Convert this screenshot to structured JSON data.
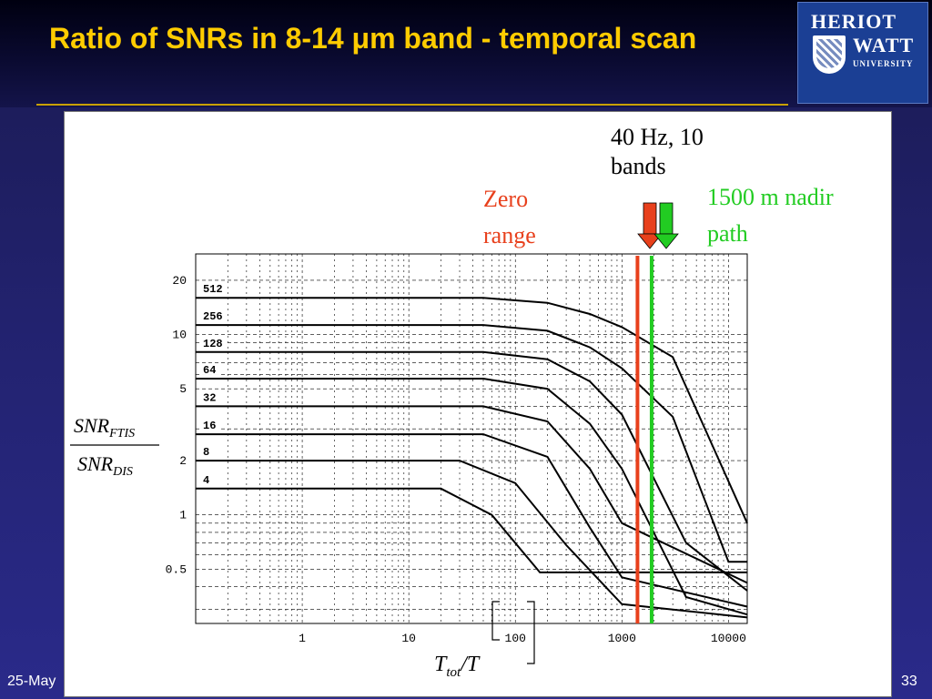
{
  "slide": {
    "title": "Ratio of SNRs in 8-14 μm band - temporal scan",
    "footer_date": "25-May",
    "page_number": "33"
  },
  "logo": {
    "line1": "HERIOT",
    "line2": "WATT",
    "line3": "UNIVERSITY"
  },
  "colors": {
    "title": "#ffcc00",
    "zero_range": "#e8401c",
    "nadir_path": "#22cc22",
    "curves": "#000000"
  },
  "chart_data": {
    "type": "line",
    "x_scale": "log",
    "y_scale": "log",
    "xlim": [
      0.1,
      15000
    ],
    "ylim": [
      0.25,
      28
    ],
    "grid": true,
    "grid_style": "dashed",
    "x_ticks": [
      1,
      10,
      100,
      1000,
      10000
    ],
    "x_tick_labels": [
      "1",
      "10",
      "100",
      "1000",
      "10000"
    ],
    "y_ticks": [
      0.5,
      1,
      2,
      5,
      10,
      20
    ],
    "y_tick_labels": [
      "0.5",
      "1",
      "2",
      "5",
      "10",
      "20"
    ],
    "ylabel_numerator_base": "SNR",
    "ylabel_numerator_sub": "FTIS",
    "ylabel_denominator_base": "SNR",
    "ylabel_denominator_sub": "DIS",
    "xlabel_base": "T",
    "xlabel_sub": "tot",
    "xlabel_rest": "/T",
    "series": [
      {
        "name": "512",
        "x": [
          0.1,
          50,
          200,
          500,
          1000,
          3000,
          15000
        ],
        "y": [
          16,
          16,
          15,
          13,
          11,
          7.5,
          0.9
        ]
      },
      {
        "name": "256",
        "x": [
          0.1,
          50,
          200,
          500,
          1000,
          3000,
          10000,
          15000
        ],
        "y": [
          11.3,
          11.3,
          10.5,
          8.5,
          6.5,
          3.5,
          0.55,
          0.55
        ]
      },
      {
        "name": "128",
        "x": [
          0.1,
          50,
          200,
          500,
          1000,
          4000,
          15000
        ],
        "y": [
          8,
          8,
          7.3,
          5.5,
          3.6,
          0.7,
          0.38
        ]
      },
      {
        "name": "64",
        "x": [
          0.1,
          50,
          200,
          500,
          1000,
          4000,
          15000
        ],
        "y": [
          5.7,
          5.7,
          5,
          3.2,
          1.8,
          0.35,
          0.28
        ]
      },
      {
        "name": "32",
        "x": [
          0.1,
          50,
          200,
          500,
          1000,
          15000
        ],
        "y": [
          4,
          4,
          3.3,
          1.8,
          0.9,
          0.42
        ]
      },
      {
        "name": "16",
        "x": [
          0.1,
          50,
          200,
          500,
          1000,
          15000
        ],
        "y": [
          2.8,
          2.8,
          2.1,
          0.85,
          0.45,
          0.31
        ]
      },
      {
        "name": "8",
        "x": [
          0.1,
          30,
          100,
          300,
          1000,
          15000
        ],
        "y": [
          2,
          2,
          1.5,
          0.68,
          0.32,
          0.27
        ]
      },
      {
        "name": "4",
        "x": [
          0.1,
          20,
          60,
          170,
          15000
        ],
        "y": [
          1.4,
          1.4,
          1,
          0.48,
          0.48
        ]
      }
    ],
    "annotations": [
      {
        "text": "40 Hz, 10 bands",
        "lines": [
          "40 Hz, 10",
          "bands"
        ],
        "x": 1400,
        "color": "#e8401c"
      },
      {
        "text": "Zero range",
        "lines": [
          "Zero",
          "range"
        ],
        "x": 1400,
        "color": "#e8401c"
      },
      {
        "text": "1500 m nadir path",
        "lines": [
          "1500 m nadir",
          "path"
        ],
        "x": 1900,
        "color": "#22cc22"
      }
    ]
  }
}
